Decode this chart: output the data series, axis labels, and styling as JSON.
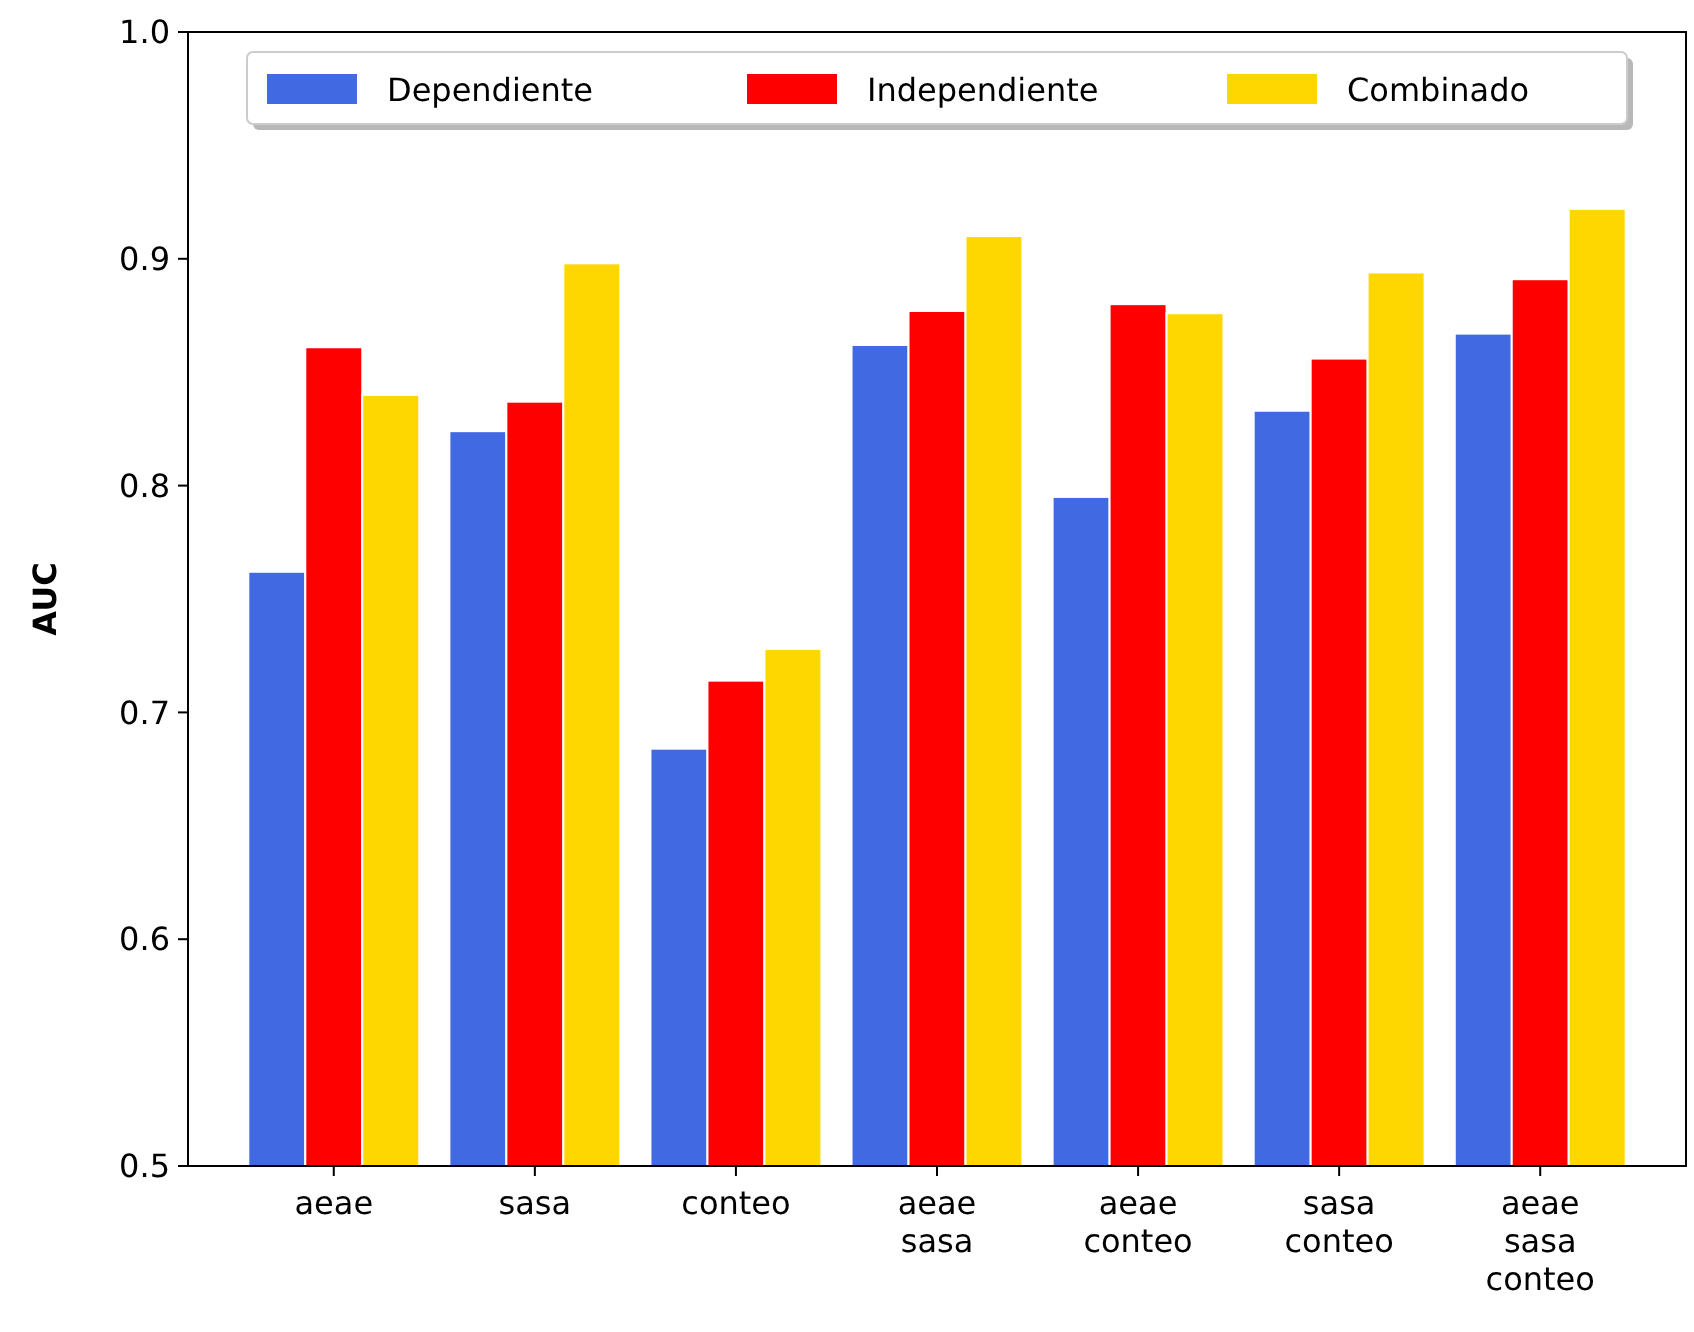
{
  "chart_data": {
    "type": "bar",
    "ylabel": "AUC",
    "categories": [
      "aeae",
      "sasa",
      "conteo",
      "aeae\nsasa",
      "aeae\nconteo",
      "sasa\nconteo",
      "aeae\nsasa\nconteo"
    ],
    "series": [
      {
        "name": "Dependiente",
        "color": "#4169e1",
        "values": [
          0.762,
          0.824,
          0.684,
          0.862,
          0.795,
          0.833,
          0.867
        ]
      },
      {
        "name": "Independiente",
        "color": "#ff0000",
        "values": [
          0.861,
          0.837,
          0.714,
          0.877,
          0.88,
          0.856,
          0.891
        ]
      },
      {
        "name": "Combinado",
        "color": "#ffd700",
        "values": [
          0.84,
          0.898,
          0.728,
          0.91,
          0.876,
          0.894,
          0.922
        ]
      }
    ],
    "ylim": [
      0.5,
      1.0
    ],
    "yticks": [
      0.5,
      0.6,
      0.7,
      0.8,
      0.9,
      {
        "value": 1.0,
        "label": "1.0"
      }
    ],
    "legend": "top"
  }
}
